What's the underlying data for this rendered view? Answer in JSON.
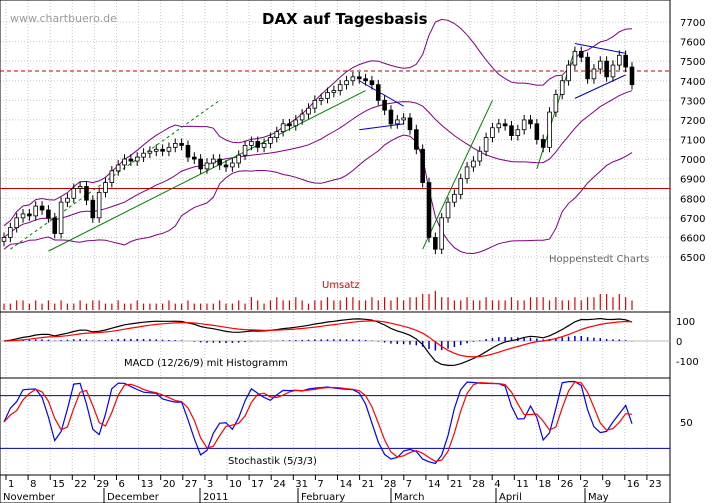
{
  "chart_data": [
    {
      "type": "candlestick",
      "title": "DAX auf Tagesbasis",
      "watermark": "www.chartbuero.de",
      "source_label": "Hoppenstedt Charts",
      "ylim": [
        6400,
        7800
      ],
      "yticks": [
        "7700",
        "7600",
        "7500",
        "7400",
        "7300",
        "7200",
        "7100",
        "7000",
        "6900",
        "6800",
        "6700",
        "6600",
        "6500"
      ],
      "overlays": {
        "bollinger_bands": true,
        "moving_average": true,
        "horizontal_levels": [
          7450,
          6850
        ],
        "trend_channels": true
      },
      "ohlc": [
        {
          "c": 6600
        },
        {
          "c": 6650
        },
        {
          "c": 6700
        },
        {
          "c": 6720
        },
        {
          "c": 6710
        },
        {
          "c": 6760
        },
        {
          "c": 6740
        },
        {
          "c": 6700
        },
        {
          "c": 6620
        },
        {
          "c": 6780
        },
        {
          "c": 6800
        },
        {
          "c": 6850
        },
        {
          "c": 6860
        },
        {
          "c": 6790
        },
        {
          "c": 6700
        },
        {
          "c": 6830
        },
        {
          "c": 6880
        },
        {
          "c": 6940
        },
        {
          "c": 6970
        },
        {
          "c": 7000
        },
        {
          "c": 6990
        },
        {
          "c": 7010
        },
        {
          "c": 7030
        },
        {
          "c": 7040
        },
        {
          "c": 7050
        },
        {
          "c": 7040
        },
        {
          "c": 7060
        },
        {
          "c": 7080
        },
        {
          "c": 7070
        },
        {
          "c": 7010
        },
        {
          "c": 7000
        },
        {
          "c": 6950
        },
        {
          "c": 6980
        },
        {
          "c": 7000
        },
        {
          "c": 6970
        },
        {
          "c": 6960
        },
        {
          "c": 6980
        },
        {
          "c": 7020
        },
        {
          "c": 7070
        },
        {
          "c": 7090
        },
        {
          "c": 7060
        },
        {
          "c": 7080
        },
        {
          "c": 7110
        },
        {
          "c": 7140
        },
        {
          "c": 7180
        },
        {
          "c": 7170
        },
        {
          "c": 7200
        },
        {
          "c": 7230
        },
        {
          "c": 7260
        },
        {
          "c": 7300
        },
        {
          "c": 7310
        },
        {
          "c": 7340
        },
        {
          "c": 7350
        },
        {
          "c": 7380
        },
        {
          "c": 7400
        },
        {
          "c": 7420
        },
        {
          "c": 7410
        },
        {
          "c": 7400
        },
        {
          "c": 7380
        },
        {
          "c": 7300
        },
        {
          "c": 7250
        },
        {
          "c": 7180
        },
        {
          "c": 7200
        },
        {
          "c": 7210
        },
        {
          "c": 7150
        },
        {
          "c": 7050
        },
        {
          "c": 6880
        },
        {
          "c": 6600
        },
        {
          "c": 6540
        },
        {
          "c": 6700
        },
        {
          "c": 6780
        },
        {
          "c": 6820
        },
        {
          "c": 6900
        },
        {
          "c": 6960
        },
        {
          "c": 6990
        },
        {
          "c": 7040
        },
        {
          "c": 7110
        },
        {
          "c": 7160
        },
        {
          "c": 7180
        },
        {
          "c": 7170
        },
        {
          "c": 7120
        },
        {
          "c": 7150
        },
        {
          "c": 7200
        },
        {
          "c": 7180
        },
        {
          "c": 7100
        },
        {
          "c": 7060
        },
        {
          "c": 7240
        },
        {
          "c": 7330
        },
        {
          "c": 7400
        },
        {
          "c": 7480
        },
        {
          "c": 7550
        },
        {
          "c": 7520
        },
        {
          "c": 7410
        },
        {
          "c": 7460
        },
        {
          "c": 7500
        },
        {
          "c": 7420
        },
        {
          "c": 7480
        },
        {
          "c": 7530
        },
        {
          "c": 7470
        },
        {
          "c": 7380
        }
      ]
    },
    {
      "type": "bar",
      "title": "Umsatz",
      "values": [
        2,
        2,
        3,
        3,
        2,
        3,
        2,
        3,
        2,
        3,
        2,
        2,
        3,
        2,
        3,
        3,
        2,
        2,
        3,
        2,
        2,
        3,
        2,
        2,
        2,
        2,
        3,
        2,
        2,
        3,
        2,
        2,
        2,
        2,
        3,
        2,
        2,
        3,
        2,
        4,
        3,
        2,
        3,
        4,
        3,
        3,
        4,
        3,
        2,
        3,
        3,
        4,
        3,
        3,
        4,
        4,
        3,
        3,
        4,
        3,
        4,
        3,
        4,
        3,
        4,
        4,
        5,
        5,
        6,
        4,
        4,
        3,
        3,
        4,
        3,
        3,
        4,
        3,
        3,
        3,
        4,
        3,
        3,
        4,
        4,
        4,
        3,
        4,
        3,
        3,
        4,
        3,
        4,
        4,
        5,
        5,
        4,
        5,
        4,
        3
      ]
    },
    {
      "type": "line",
      "title": "MACD (12/26/9) mit Histogramm",
      "yticks": [
        "100",
        "0",
        "-100"
      ],
      "ylim": [
        -150,
        150
      ]
    },
    {
      "type": "line",
      "title": "Stochastik  (5/3/3)",
      "yticks": [
        "50"
      ],
      "ylim": [
        0,
        100
      ],
      "levels": [
        80,
        20
      ]
    }
  ],
  "x_axis": {
    "day_labels": [
      "1",
      "8",
      "15",
      "22",
      "29",
      "6",
      "13",
      "20",
      "27",
      "3",
      "10",
      "17",
      "24",
      "31",
      "7",
      "14",
      "21",
      "28",
      "7",
      "14",
      "21",
      "28",
      "4",
      "11",
      "18",
      "26",
      "2",
      "9",
      "16",
      "23"
    ],
    "month_labels": [
      "November",
      "December",
      "2011",
      "February",
      "March",
      "April",
      "May"
    ]
  },
  "colors": {
    "bollinger": "#800080",
    "moving_average": "#008000",
    "horizontal_level": "#c00000",
    "volume": "#dd0000",
    "macd_line": "#000000",
    "signal_line": "#ff0000",
    "histogram": "#0000cc",
    "stoch_k": "#0000ff",
    "stoch_d": "#ff0000"
  }
}
